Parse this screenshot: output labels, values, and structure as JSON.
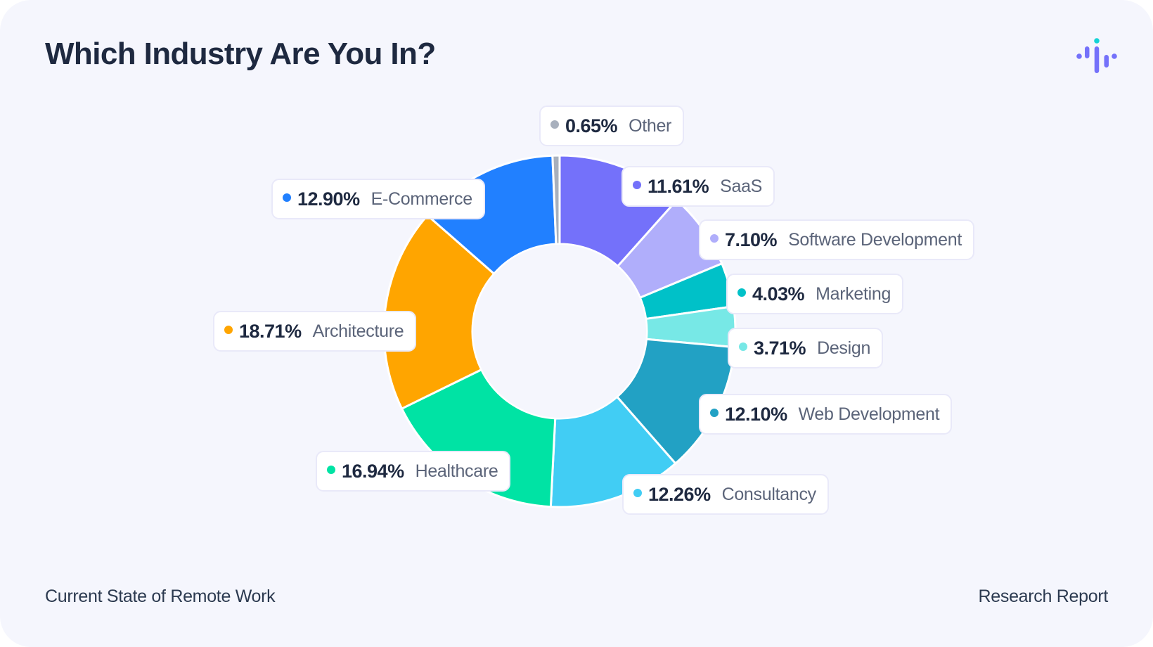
{
  "header": {
    "title": "Which Industry Are You In?"
  },
  "logo": {
    "icon": "audio-waveform-logo-icon",
    "colors": {
      "bars": "#7471fa",
      "accent": "#14d3d6"
    }
  },
  "footer": {
    "left": "Current State of Remote Work",
    "right": "Research Report"
  },
  "chart_data": {
    "type": "pie",
    "style": "donut",
    "title": "Which Industry Are You In?",
    "unit": "%",
    "start": "12 o'clock, clockwise",
    "slices": [
      {
        "label": "SaaS",
        "value": 11.61,
        "display": "11.61%",
        "color": "#7471fa"
      },
      {
        "label": "Software Development",
        "value": 7.1,
        "display": "7.10%",
        "color": "#b0aefb"
      },
      {
        "label": "Marketing",
        "value": 4.03,
        "display": "4.03%",
        "color": "#00c1c8"
      },
      {
        "label": "Design",
        "value": 3.71,
        "display": "3.71%",
        "color": "#77e8e6"
      },
      {
        "label": "Web Development",
        "value": 12.1,
        "display": "12.10%",
        "color": "#22a1c4"
      },
      {
        "label": "Consultancy",
        "value": 12.26,
        "display": "12.26%",
        "color": "#41cdf4"
      },
      {
        "label": "Healthcare",
        "value": 16.94,
        "display": "16.94%",
        "color": "#00e3a4"
      },
      {
        "label": "Architecture",
        "value": 18.71,
        "display": "18.71%",
        "color": "#ffa500"
      },
      {
        "label": "E-Commerce",
        "value": 12.9,
        "display": "12.90%",
        "color": "#2180ff"
      },
      {
        "label": "Other",
        "value": 0.65,
        "display": "0.65%",
        "color": "#a8b0bd"
      }
    ]
  }
}
